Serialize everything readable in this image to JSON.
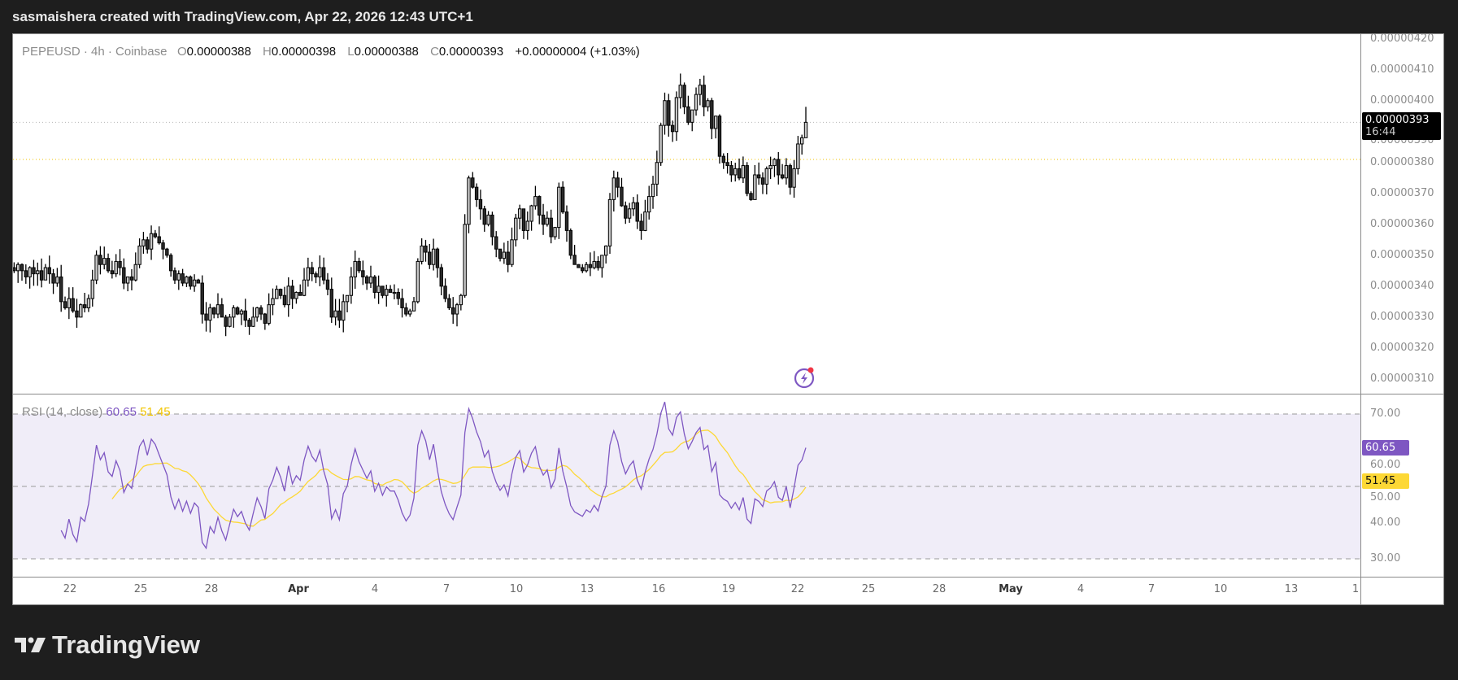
{
  "header": {
    "caption": "sasmaishera created with TradingView.com, Apr 22, 2026 12:43 UTC+1"
  },
  "legend": {
    "symbol": "PEPEUSD · 4h · Coinbase",
    "open_label": "O",
    "open": "0.00000388",
    "high_label": "H",
    "high": "0.00000398",
    "low_label": "L",
    "low": "0.00000388",
    "close_label": "C",
    "close": "0.00000393",
    "change": "+0.00000004 (+1.03%)"
  },
  "price_axis": {
    "ticks": [
      "0.00000420",
      "0.00000410",
      "0.00000400",
      "0.00000390",
      "0.00000380",
      "0.00000370",
      "0.00000360",
      "0.00000350",
      "0.00000340",
      "0.00000330",
      "0.00000320",
      "0.00000310"
    ],
    "current_price": "0.00000393",
    "countdown": "16:44",
    "line_level": 3.81e-06
  },
  "rsi": {
    "label": "RSI (14, close)",
    "value": "60.65",
    "ma_value": "51.45",
    "ticks": [
      "70.00",
      "60.00",
      "50.00",
      "40.00",
      "30.00"
    ],
    "upper_band": 70,
    "middle_band": 50,
    "lower_band": 30,
    "line_color": "#7e57c2",
    "ma_color": "#fdd835",
    "band_fill": "#f0edf8"
  },
  "time_axis": {
    "labels": [
      "22",
      "25",
      "28",
      "Apr",
      "4",
      "7",
      "10",
      "13",
      "16",
      "19",
      "22",
      "25",
      "28",
      "May",
      "4",
      "7",
      "10",
      "13",
      "1"
    ]
  },
  "colors": {
    "up_fill": "#c9c9c9",
    "down_fill": "#2b2b2b",
    "border": "#000000"
  },
  "chart_data": {
    "type": "candlestick",
    "interval": "4h",
    "closes": [
      3.44e-06,
      3.46e-06,
      3.45e-06,
      3.47e-06,
      3.45e-06,
      3.43e-06,
      3.46e-06,
      3.44e-06,
      3.45e-06,
      3.42e-06,
      3.46e-06,
      3.44e-06,
      3.41e-06,
      3.43e-06,
      3.35e-06,
      3.33e-06,
      3.36e-06,
      3.32e-06,
      3.3e-06,
      3.34e-06,
      3.33e-06,
      3.36e-06,
      3.42e-06,
      3.5e-06,
      3.47e-06,
      3.49e-06,
      3.45e-06,
      3.44e-06,
      3.48e-06,
      3.46e-06,
      3.41e-06,
      3.43e-06,
      3.42e-06,
      3.47e-06,
      3.53e-06,
      3.55e-06,
      3.52e-06,
      3.57e-06,
      3.56e-06,
      3.54e-06,
      3.52e-06,
      3.5e-06,
      3.45e-06,
      3.42e-06,
      3.44e-06,
      3.41e-06,
      3.43e-06,
      3.4e-06,
      3.42e-06,
      3.41e-06,
      3.31e-06,
      3.29e-06,
      3.33e-06,
      3.31e-06,
      3.34e-06,
      3.3e-06,
      3.27e-06,
      3.3e-06,
      3.33e-06,
      3.31e-06,
      3.32e-06,
      3.29e-06,
      3.27e-06,
      3.3e-06,
      3.33e-06,
      3.31e-06,
      3.28e-06,
      3.34e-06,
      3.36e-06,
      3.39e-06,
      3.37e-06,
      3.34e-06,
      3.4e-06,
      3.36e-06,
      3.38e-06,
      3.37e-06,
      3.42e-06,
      3.46e-06,
      3.44e-06,
      3.43e-06,
      3.46e-06,
      3.42e-06,
      3.39e-06,
      3.3e-06,
      3.32e-06,
      3.29e-06,
      3.35e-06,
      3.37e-06,
      3.43e-06,
      3.48e-06,
      3.45e-06,
      3.43e-06,
      3.41e-06,
      3.43e-06,
      3.38e-06,
      3.4e-06,
      3.37e-06,
      3.39e-06,
      3.38e-06,
      3.38e-06,
      3.36e-06,
      3.33e-06,
      3.31e-06,
      3.32e-06,
      3.35e-06,
      3.48e-06,
      3.53e-06,
      3.51e-06,
      3.47e-06,
      3.52e-06,
      3.46e-06,
      3.4e-06,
      3.36e-06,
      3.33e-06,
      3.31e-06,
      3.34e-06,
      3.37e-06,
      3.6e-06,
      3.75e-06,
      3.72e-06,
      3.68e-06,
      3.65e-06,
      3.6e-06,
      3.63e-06,
      3.56e-06,
      3.52e-06,
      3.49e-06,
      3.51e-06,
      3.47e-06,
      3.55e-06,
      3.62e-06,
      3.65e-06,
      3.58e-06,
      3.61e-06,
      3.66e-06,
      3.69e-06,
      3.63e-06,
      3.6e-06,
      3.62e-06,
      3.56e-06,
      3.59e-06,
      3.72e-06,
      3.64e-06,
      3.58e-06,
      3.5e-06,
      3.47e-06,
      3.46e-06,
      3.45e-06,
      3.47e-06,
      3.46e-06,
      3.48e-06,
      3.46e-06,
      3.5e-06,
      3.53e-06,
      3.68e-06,
      3.75e-06,
      3.72e-06,
      3.66e-06,
      3.62e-06,
      3.65e-06,
      3.67e-06,
      3.61e-06,
      3.58e-06,
      3.64e-06,
      3.69e-06,
      3.73e-06,
      3.8e-06,
      3.92e-06,
      4e-06,
      3.92e-06,
      3.9e-06,
      4.01e-06,
      4.05e-06,
      3.98e-06,
      3.93e-06,
      3.97e-06,
      4.02e-06,
      4.05e-06,
      3.98e-06,
      4e-06,
      3.91e-06,
      3.95e-06,
      3.82e-06,
      3.8e-06,
      3.79e-06,
      3.76e-06,
      3.78e-06,
      3.75e-06,
      3.79e-06,
      3.7e-06,
      3.68e-06,
      3.76e-06,
      3.75e-06,
      3.73e-06,
      3.78e-06,
      3.79e-06,
      3.81e-06,
      3.76e-06,
      3.75e-06,
      3.79e-06,
      3.72e-06,
      3.78e-06,
      3.86e-06,
      3.88e-06,
      3.93e-06
    ],
    "last_candle": {
      "open": 3.88e-06,
      "high": 3.98e-06,
      "low": 3.88e-06,
      "close": 3.93e-06
    },
    "ylim": [
      3.055e-06,
      4.215e-06
    ],
    "rsi_ylim": [
      30,
      70
    ]
  }
}
